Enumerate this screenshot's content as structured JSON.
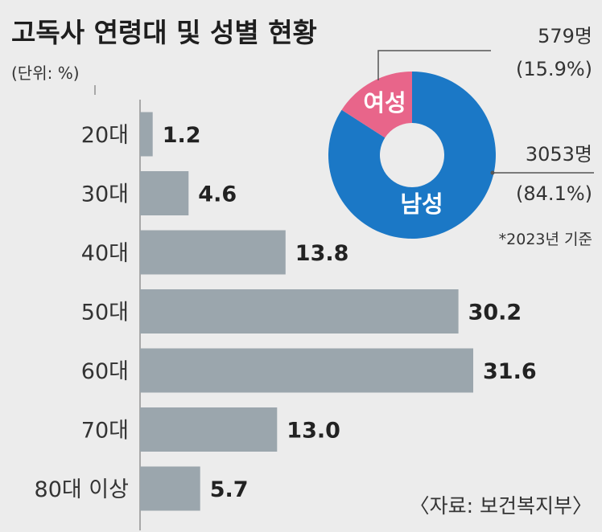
{
  "title": "고독사 연령대 및 성별 현황",
  "unit": "(단위: %)",
  "source": "〈자료: 보건복지부〉",
  "note": "*2023년 기준",
  "colors": {
    "background": "#ececec",
    "bar": "#9ba6ad",
    "axis": "#a8a8a8",
    "male": "#1b78c6",
    "female": "#e8658a"
  },
  "chart_data": [
    {
      "type": "bar",
      "orientation": "horizontal",
      "title": "고독사 연령대 및 성별 현황",
      "unit": "(단위: %)",
      "categories": [
        "20대",
        "30대",
        "40대",
        "50대",
        "60대",
        "70대",
        "80대 이상"
      ],
      "values": [
        1.2,
        4.6,
        13.8,
        30.2,
        31.6,
        13.0,
        5.7
      ],
      "value_labels": [
        "1.2",
        "4.6",
        "13.8",
        "30.2",
        "31.6",
        "13.0",
        "5.7"
      ],
      "xlim": [
        0,
        33
      ],
      "grid": false,
      "legend": "none"
    },
    {
      "type": "pie",
      "style": "donut",
      "slices": [
        {
          "label": "여성",
          "count": "579명",
          "percent": "(15.9%)",
          "value": 15.9,
          "color": "#e8658a"
        },
        {
          "label": "남성",
          "count": "3053명",
          "percent": "(84.1%)",
          "value": 84.1,
          "color": "#1b78c6"
        }
      ],
      "note": "*2023년 기준"
    }
  ]
}
